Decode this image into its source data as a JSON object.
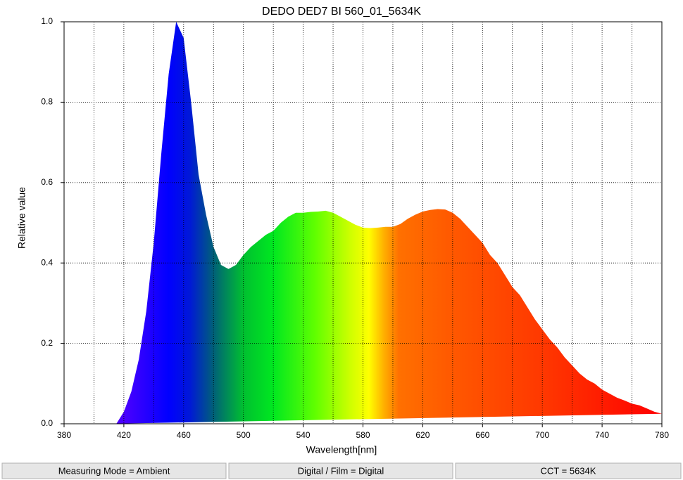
{
  "chart_data": {
    "type": "area",
    "title": "DEDO DED7 BI 560_01_5634K",
    "xlabel": "Wavelength[nm]",
    "ylabel": "Relative value",
    "x": [
      410,
      415,
      420,
      425,
      430,
      435,
      440,
      445,
      450,
      455,
      460,
      465,
      470,
      475,
      480,
      485,
      490,
      495,
      500,
      505,
      510,
      515,
      520,
      525,
      530,
      535,
      540,
      545,
      550,
      555,
      560,
      565,
      570,
      575,
      580,
      585,
      590,
      595,
      600,
      605,
      610,
      615,
      620,
      625,
      630,
      635,
      640,
      645,
      650,
      655,
      660,
      665,
      670,
      675,
      680,
      685,
      690,
      695,
      700,
      705,
      710,
      715,
      720,
      725,
      730,
      735,
      740,
      745,
      750,
      755,
      760,
      765,
      770,
      775,
      780
    ],
    "y": [
      0,
      0,
      0.03,
      0.08,
      0.16,
      0.28,
      0.45,
      0.67,
      0.87,
      1.0,
      0.96,
      0.8,
      0.62,
      0.52,
      0.44,
      0.395,
      0.385,
      0.395,
      0.42,
      0.44,
      0.455,
      0.47,
      0.48,
      0.5,
      0.515,
      0.525,
      0.525,
      0.527,
      0.528,
      0.53,
      0.525,
      0.515,
      0.505,
      0.495,
      0.488,
      0.487,
      0.488,
      0.49,
      0.49,
      0.497,
      0.51,
      0.52,
      0.528,
      0.532,
      0.534,
      0.533,
      0.525,
      0.51,
      0.49,
      0.47,
      0.45,
      0.42,
      0.4,
      0.37,
      0.34,
      0.32,
      0.29,
      0.26,
      0.235,
      0.21,
      0.19,
      0.165,
      0.145,
      0.125,
      0.11,
      0.1,
      0.085,
      0.075,
      0.065,
      0.058,
      0.05,
      0.046,
      0.038,
      0.03,
      0.025
    ],
    "xlim": [
      380,
      780
    ],
    "ylim": [
      0,
      1
    ],
    "xticks": [
      380,
      420,
      460,
      500,
      540,
      580,
      620,
      660,
      700,
      740,
      780
    ],
    "xminor": [
      400,
      440,
      480,
      520,
      560,
      600,
      640,
      680,
      720,
      760
    ],
    "yticks": [
      {
        "value": 0,
        "label": "0.0"
      },
      0.2,
      0.4,
      0.6,
      0.8,
      {
        "value": 1,
        "label": "1.0"
      }
    ],
    "grid": true
  },
  "status_bar": [
    "Measuring Mode = Ambient",
    "Digital / Film = Digital",
    "CCT = 5634K"
  ]
}
